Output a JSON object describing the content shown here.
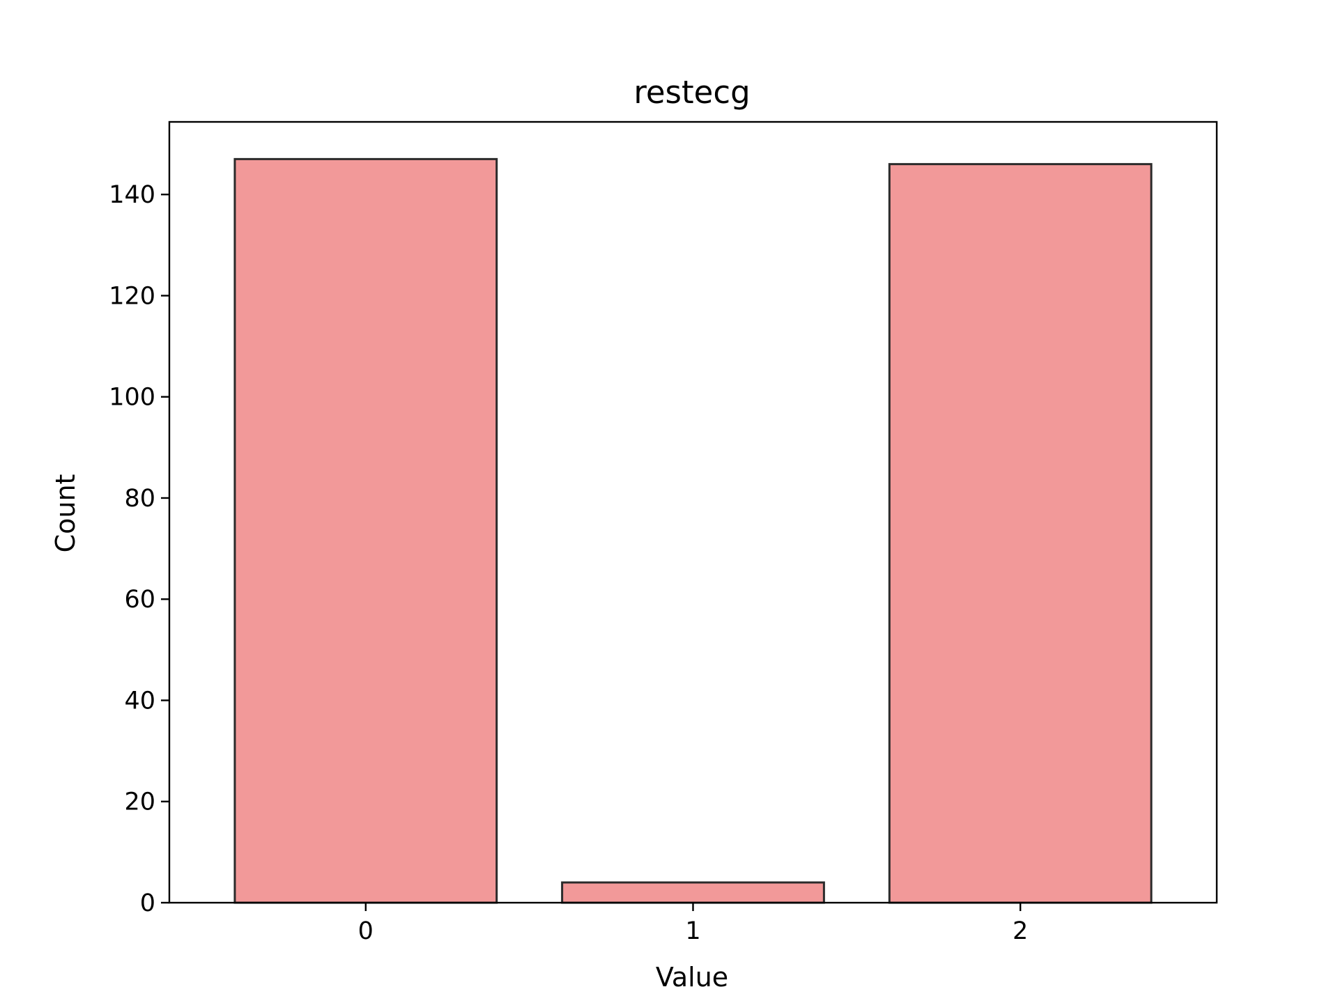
{
  "chart_data": {
    "type": "bar",
    "title": "restecg",
    "xlabel": "Value",
    "ylabel": "Count",
    "categories": [
      "0",
      "1",
      "2"
    ],
    "values": [
      147,
      4,
      146
    ],
    "ylim": [
      0,
      154.35
    ],
    "yticks": [
      "0",
      "20",
      "40",
      "60",
      "80",
      "100",
      "120",
      "140"
    ],
    "grid": false,
    "legend": "none",
    "colors": {
      "bar_fill": "#f29999",
      "bar_edge": "#2b2b2b",
      "axes": "#000000",
      "background": "#ffffff"
    }
  }
}
